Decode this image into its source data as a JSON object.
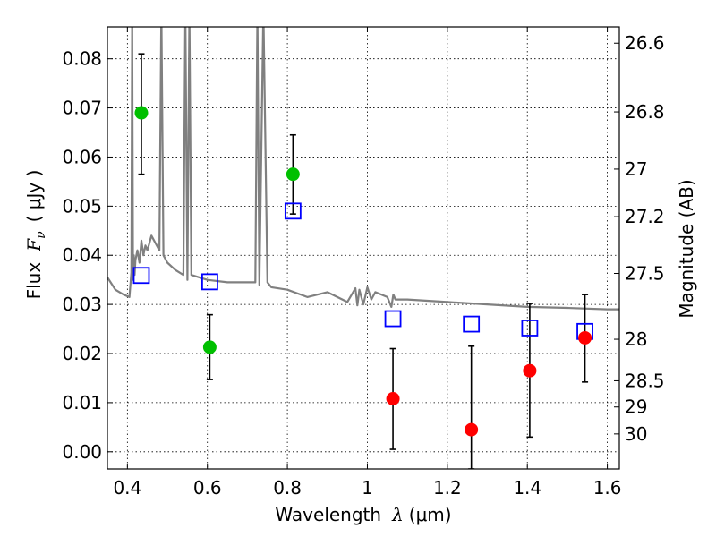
{
  "chart_data": {
    "type": "scatter",
    "xlabel_prefix": "Wavelength",
    "xlabel_symbol": "λ",
    "xlabel_unit": "(μm)",
    "ylabel_prefix": "Flux",
    "ylabel_symbol": "F",
    "ylabel_subscript": "ν",
    "ylabel_unit": "( μJy )",
    "y2label": "Magnitude (AB)",
    "xlim": [
      0.35,
      1.63
    ],
    "ylim": [
      -0.0035,
      0.0865
    ],
    "x_ticks": [
      0.4,
      0.6,
      0.8,
      1.0,
      1.2,
      1.4,
      1.6
    ],
    "x_tick_labels": [
      "0.4",
      "0.6",
      "0.8",
      "1",
      "1.2",
      "1.4",
      "1.6"
    ],
    "y_ticks": [
      0.0,
      0.01,
      0.02,
      0.03,
      0.04,
      0.05,
      0.06,
      0.07,
      0.08
    ],
    "y_tick_labels": [
      "0.00",
      "0.01",
      "0.02",
      "0.03",
      "0.04",
      "0.05",
      "0.06",
      "0.07",
      "0.08"
    ],
    "mag_ticks": [
      26.6,
      26.8,
      27.0,
      27.2,
      27.5,
      28.0,
      28.5,
      29.0,
      30.0
    ],
    "mag_tick_labels": [
      "26.6",
      "26.8",
      "27",
      "27.2",
      "27.5",
      "28",
      "28.5",
      "29",
      "30"
    ],
    "grid": true,
    "colors": {
      "detection": "#00c000",
      "upper_limit": "#ff0000",
      "model_photometry": "#0000ff",
      "sed": "#808080",
      "errorbar": "#000000"
    },
    "detections": [
      {
        "x": 0.435,
        "y": 0.069,
        "yerr_low": 0.0565,
        "yerr_high": 0.081
      },
      {
        "x": 0.606,
        "y": 0.0213,
        "yerr_low": 0.0147,
        "yerr_high": 0.0279
      },
      {
        "x": 0.814,
        "y": 0.0565,
        "yerr_low": 0.0484,
        "yerr_high": 0.0645
      }
    ],
    "upper_limits": [
      {
        "x": 1.064,
        "y": 0.0108,
        "yerr_low": 0.0005,
        "yerr_high": 0.021
      },
      {
        "x": 1.26,
        "y": 0.0045,
        "yerr_low": -0.0035,
        "yerr_high": 0.0215
      },
      {
        "x": 1.406,
        "y": 0.0165,
        "yerr_low": 0.003,
        "yerr_high": 0.0302
      },
      {
        "x": 1.544,
        "y": 0.0232,
        "yerr_low": 0.0142,
        "yerr_high": 0.032
      }
    ],
    "model_photometry": [
      {
        "x": 0.435,
        "y": 0.0359
      },
      {
        "x": 0.606,
        "y": 0.0346
      },
      {
        "x": 0.814,
        "y": 0.049
      },
      {
        "x": 1.064,
        "y": 0.0271
      },
      {
        "x": 1.26,
        "y": 0.026
      },
      {
        "x": 1.406,
        "y": 0.0252
      },
      {
        "x": 1.544,
        "y": 0.0245
      }
    ],
    "sed_spectrum": {
      "x": [
        0.35,
        0.37,
        0.39,
        0.405,
        0.41,
        0.412,
        0.414,
        0.416,
        0.418,
        0.42,
        0.425,
        0.43,
        0.435,
        0.44,
        0.445,
        0.45,
        0.46,
        0.47,
        0.48,
        0.485,
        0.49,
        0.5,
        0.52,
        0.54,
        0.545,
        0.55,
        0.555,
        0.56,
        0.6,
        0.65,
        0.7,
        0.72,
        0.725,
        0.73,
        0.74,
        0.75,
        0.76,
        0.8,
        0.85,
        0.9,
        0.95,
        0.97,
        0.975,
        0.98,
        0.99,
        1.0,
        1.01,
        1.02,
        1.05,
        1.06,
        1.065,
        1.07,
        1.1,
        1.2,
        1.3,
        1.4,
        1.5,
        1.6,
        1.63
      ],
      "y": [
        0.0355,
        0.033,
        0.032,
        0.0315,
        0.0365,
        0.09,
        0.035,
        0.04,
        0.036,
        0.039,
        0.041,
        0.0385,
        0.043,
        0.04,
        0.042,
        0.041,
        0.044,
        0.0425,
        0.041,
        0.09,
        0.04,
        0.0385,
        0.037,
        0.036,
        0.09,
        0.035,
        0.09,
        0.036,
        0.035,
        0.0345,
        0.0345,
        0.0345,
        0.09,
        0.034,
        0.09,
        0.0345,
        0.0335,
        0.033,
        0.0315,
        0.0325,
        0.0305,
        0.0333,
        0.0298,
        0.033,
        0.03,
        0.0335,
        0.031,
        0.0325,
        0.0315,
        0.0295,
        0.032,
        0.031,
        0.031,
        0.0305,
        0.03,
        0.0295,
        0.0293,
        0.029,
        0.029
      ]
    }
  }
}
